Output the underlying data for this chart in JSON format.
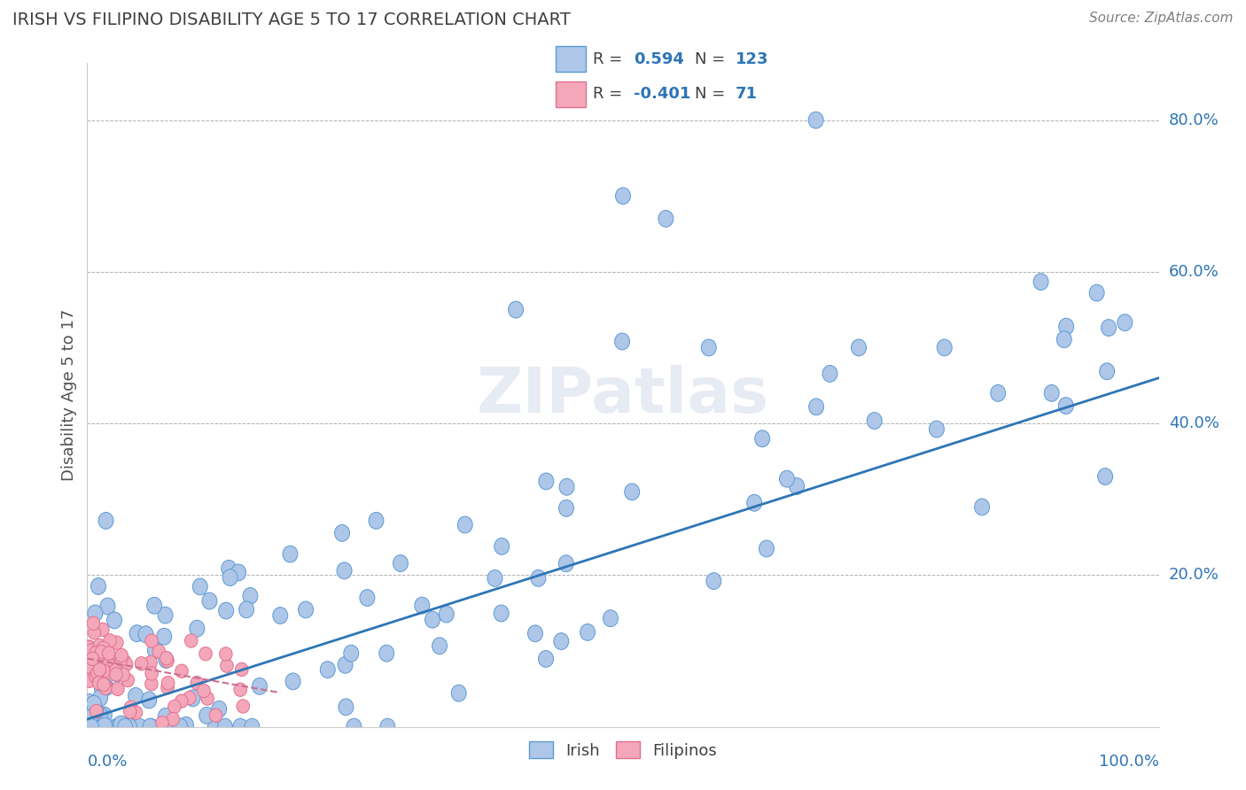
{
  "title": "IRISH VS FILIPINO DISABILITY AGE 5 TO 17 CORRELATION CHART",
  "source_text": "Source: ZipAtlas.com",
  "ylabel": "Disability Age 5 to 17",
  "xlim": [
    0.0,
    1.0
  ],
  "ylim": [
    0.0,
    0.875
  ],
  "irish_R": 0.594,
  "irish_N": 123,
  "filipino_R": -0.401,
  "filipino_N": 71,
  "irish_color": "#aec6e8",
  "irish_edge_color": "#5b9bd5",
  "filipino_color": "#f4a7b9",
  "filipino_edge_color": "#e07090",
  "trend_irish_color": "#2e75b6",
  "trend_filipino_color": "#cc7090",
  "title_color": "#404040",
  "source_color": "#808080",
  "legend_R_color": "#2e75b6",
  "background_color": "#ffffff",
  "grid_color": "#b0b0b0",
  "irish_trend_x0": 0.0,
  "irish_trend_y0": 0.01,
  "irish_trend_x1": 1.0,
  "irish_trend_y1": 0.46,
  "filipino_trend_x0": 0.0,
  "filipino_trend_y0": 0.09,
  "filipino_trend_x1": 0.18,
  "filipino_trend_y1": 0.045
}
